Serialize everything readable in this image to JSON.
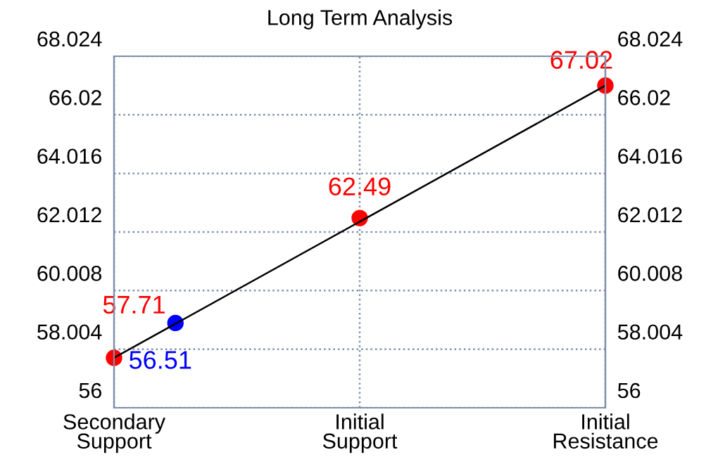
{
  "chart_data": {
    "type": "line",
    "title": "Long Term Analysis",
    "categories": [
      "Secondary\nSupport",
      null,
      null,
      null,
      "Initial\nSupport",
      null,
      null,
      null,
      "Initial\nResistance"
    ],
    "ylim": [
      56,
      68.024
    ],
    "yticks": [
      56,
      58.004,
      60.008,
      62.012,
      64.016,
      66.02,
      68.024
    ],
    "y2lim": [
      56,
      68.024
    ],
    "y2ticks": [
      56,
      58.004,
      60.008,
      62.012,
      64.016,
      66.02,
      68.024
    ],
    "grid": true,
    "marker": "circle",
    "line_style": "solid",
    "series": [
      {
        "color": "#000000",
        "marker": "none",
        "values": [
          57.71,
          null,
          null,
          null,
          null,
          null,
          null,
          null,
          67.02
        ]
      },
      {
        "type": "scatter",
        "color": "#ff0000",
        "values": [
          57.71,
          null,
          null,
          null,
          62.49,
          null,
          null,
          null,
          67.02
        ],
        "value_labels": [
          "57.71",
          null,
          null,
          null,
          "62.49",
          null,
          null,
          null,
          "67.02"
        ]
      },
      {
        "type": "scatter",
        "color": "#0000ff",
        "values": [
          null,
          58.9,
          null,
          null,
          null,
          null,
          null,
          null,
          null
        ]
      }
    ],
    "annotations": [
      "56.51"
    ]
  }
}
